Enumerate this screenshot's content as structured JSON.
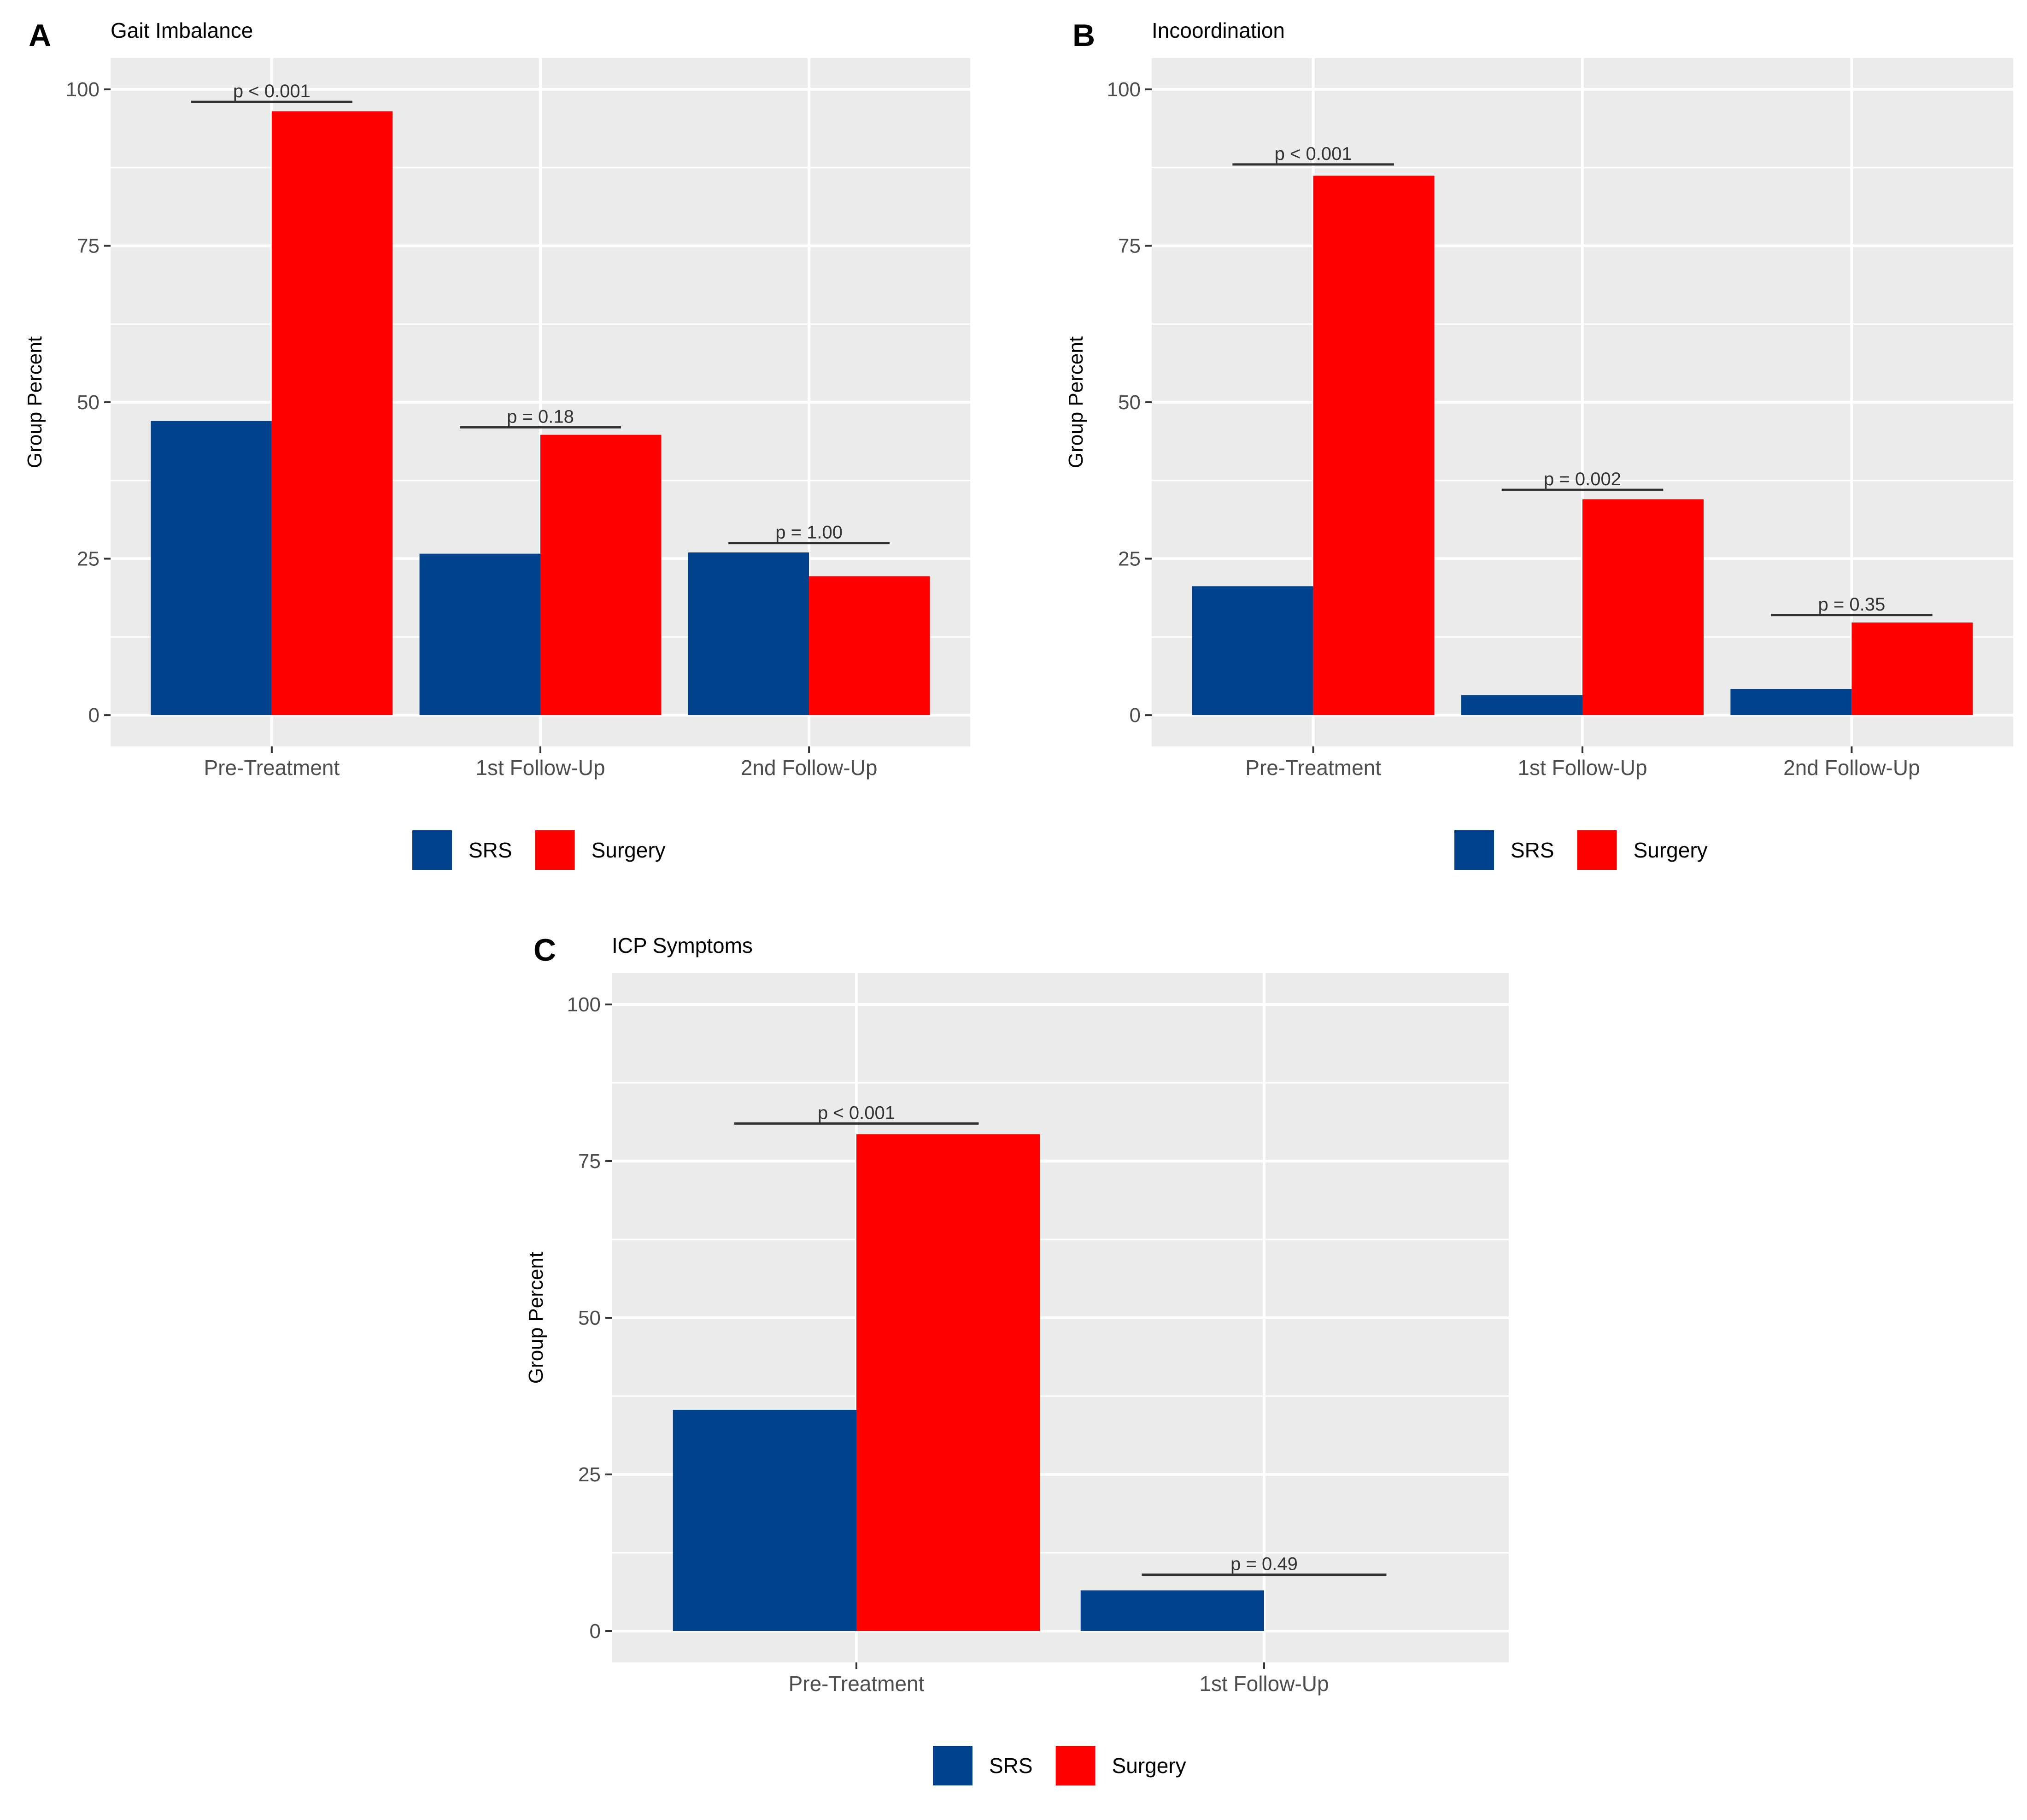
{
  "colors": {
    "srs": "#00428C",
    "surgery": "#FF0000",
    "panel_bg": "#EBEBEB",
    "grid": "#FFFFFF",
    "axis_text": "#4D4D4D",
    "text": "#000000",
    "annotation": "#333333"
  },
  "legend_labels": [
    "SRS",
    "Surgery"
  ],
  "chart_data": [
    {
      "type": "bar",
      "panel_label": "A",
      "title": "Gait Imbalance",
      "xlabel": "",
      "ylabel": "Group Percent",
      "ylim": [
        -5,
        105
      ],
      "yticks": [
        0,
        25,
        50,
        75,
        100
      ],
      "grid": true,
      "legend": "bottom",
      "categories": [
        "Pre-Treatment",
        "1st Follow-Up",
        "2nd Follow-Up"
      ],
      "series": [
        {
          "name": "SRS",
          "values": [
            47,
            25.8,
            26
          ]
        },
        {
          "name": "Surgery",
          "values": [
            96.5,
            44.8,
            22.2
          ]
        }
      ],
      "annotations": [
        {
          "category": "Pre-Treatment",
          "text": "p < 0.001",
          "y": 98
        },
        {
          "category": "1st Follow-Up",
          "text": "p = 0.18",
          "y": 46
        },
        {
          "category": "2nd Follow-Up",
          "text": "p = 1.00",
          "y": 27.5
        }
      ]
    },
    {
      "type": "bar",
      "panel_label": "B",
      "title": "Incoordination",
      "xlabel": "",
      "ylabel": "Group Percent",
      "ylim": [
        -5,
        105
      ],
      "yticks": [
        0,
        25,
        50,
        75,
        100
      ],
      "grid": true,
      "legend": "bottom",
      "categories": [
        "Pre-Treatment",
        "1st Follow-Up",
        "2nd Follow-Up"
      ],
      "series": [
        {
          "name": "SRS",
          "values": [
            20.6,
            3.2,
            4.2
          ]
        },
        {
          "name": "Surgery",
          "values": [
            86.2,
            34.5,
            14.8
          ]
        }
      ],
      "annotations": [
        {
          "category": "Pre-Treatment",
          "text": "p < 0.001",
          "y": 88
        },
        {
          "category": "1st Follow-Up",
          "text": "p = 0.002",
          "y": 36
        },
        {
          "category": "2nd Follow-Up",
          "text": "p = 0.35",
          "y": 16
        }
      ]
    },
    {
      "type": "bar",
      "panel_label": "C",
      "title": "ICP Symptoms",
      "xlabel": "",
      "ylabel": "Group Percent",
      "ylim": [
        -5,
        105
      ],
      "yticks": [
        0,
        25,
        50,
        75,
        100
      ],
      "grid": true,
      "legend": "bottom",
      "categories": [
        "Pre-Treatment",
        "1st Follow-Up"
      ],
      "series": [
        {
          "name": "SRS",
          "values": [
            35.3,
            6.5
          ]
        },
        {
          "name": "Surgery",
          "values": [
            79.3,
            0
          ]
        }
      ],
      "annotations": [
        {
          "category": "Pre-Treatment",
          "text": "p < 0.001",
          "y": 81
        },
        {
          "category": "1st Follow-Up",
          "text": "p = 0.49",
          "y": 9
        }
      ]
    }
  ]
}
